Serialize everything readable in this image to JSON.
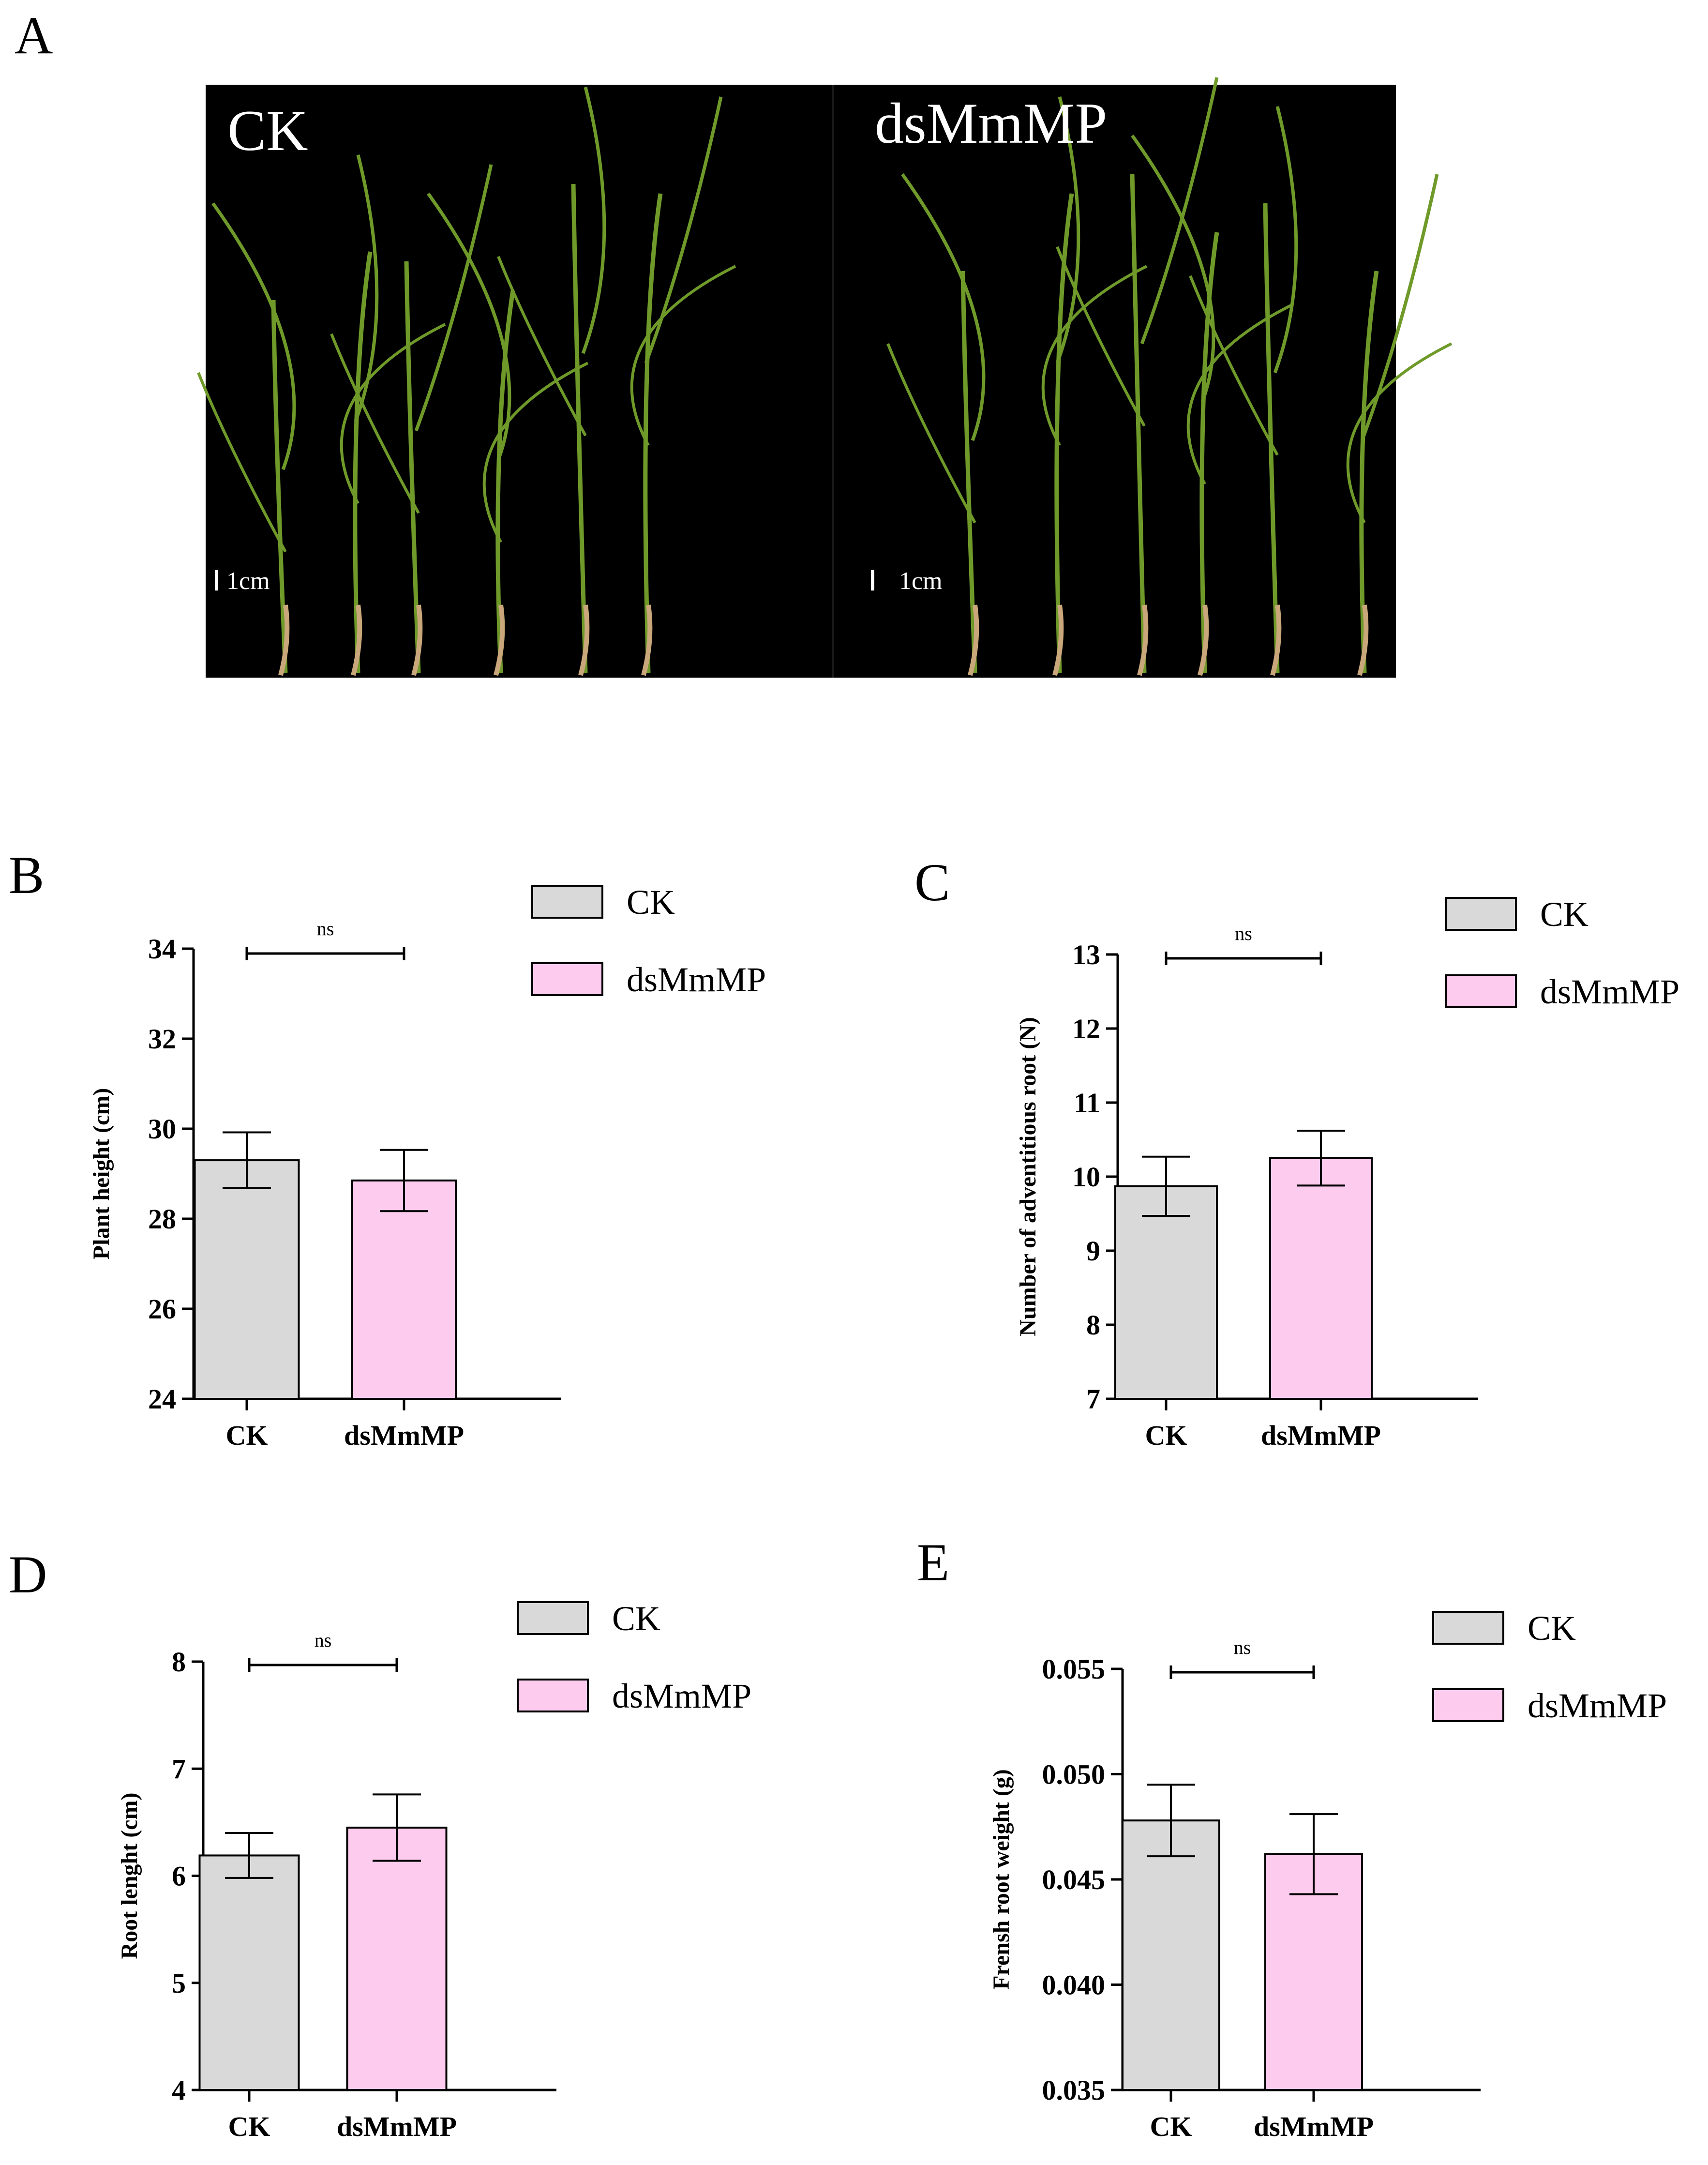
{
  "panel_letters": [
    "A",
    "B",
    "C",
    "D",
    "E"
  ],
  "photo": {
    "left_label": "CK",
    "right_label": "dsMmMP",
    "scale_label": "1cm",
    "background_color": "#000000",
    "leaf_color": "#6f9a2a",
    "root_color": "#c9a77a"
  },
  "colors": {
    "CK": "#d9d9d9",
    "dsMmMP": "#fccbee",
    "edge": "#000000"
  },
  "chart_data": [
    {
      "panel": "B",
      "type": "bar",
      "categories": [
        "CK",
        "dsMmMP"
      ],
      "values": [
        29.3,
        28.85
      ],
      "errors": [
        0.62,
        0.68
      ],
      "ylim": [
        24,
        34
      ],
      "yticks": [
        24,
        26,
        28,
        30,
        32,
        34
      ],
      "ytick_labels": [
        "24",
        "26",
        "28",
        "30",
        "32",
        "34"
      ],
      "ylabel": "Plant height (cm)",
      "xlabel": "",
      "legend": [
        "CK",
        "dsMmMP"
      ],
      "legend_position": "top-right",
      "significance": "ns"
    },
    {
      "panel": "C",
      "type": "bar",
      "categories": [
        "CK",
        "dsMmMP"
      ],
      "values": [
        9.87,
        10.25
      ],
      "errors": [
        0.4,
        0.37
      ],
      "ylim": [
        7,
        13
      ],
      "yticks": [
        7,
        8,
        9,
        10,
        11,
        12,
        13
      ],
      "ytick_labels": [
        "7",
        "8",
        "9",
        "10",
        "11",
        "12",
        "13"
      ],
      "ylabel": "Number of adventitious root (N)",
      "xlabel": "",
      "legend": [
        "CK",
        "dsMmMP"
      ],
      "legend_position": "top-right",
      "significance": "ns"
    },
    {
      "panel": "D",
      "type": "bar",
      "categories": [
        "CK",
        "dsMmMP"
      ],
      "values": [
        6.19,
        6.45
      ],
      "errors": [
        0.21,
        0.31
      ],
      "ylim": [
        4,
        8
      ],
      "yticks": [
        4,
        5,
        6,
        7,
        8
      ],
      "ytick_labels": [
        "4",
        "5",
        "6",
        "7",
        "8"
      ],
      "ylabel": "Root lenght (cm)",
      "xlabel": "",
      "legend": [
        "CK",
        "dsMmMP"
      ],
      "legend_position": "top-right",
      "significance": "ns"
    },
    {
      "panel": "E",
      "type": "bar",
      "categories": [
        "CK",
        "dsMmMP"
      ],
      "values": [
        0.0478,
        0.0462
      ],
      "errors": [
        0.0017,
        0.0019
      ],
      "ylim": [
        0.035,
        0.055
      ],
      "yticks": [
        0.035,
        0.04,
        0.045,
        0.05,
        0.055
      ],
      "ytick_labels": [
        "0.035",
        "0.040",
        "0.045",
        "0.050",
        "0.055"
      ],
      "ylabel": "Frensh root weight (g)",
      "xlabel": "",
      "legend": [
        "CK",
        "dsMmMP"
      ],
      "legend_position": "top-right",
      "significance": "ns"
    }
  ]
}
